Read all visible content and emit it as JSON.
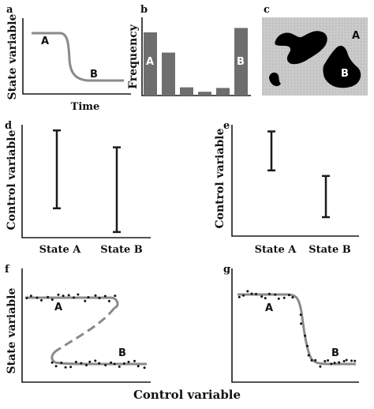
{
  "panels": {
    "a": {
      "letter": "a",
      "ylabel": "State variable",
      "xlabel": "Time",
      "label_a": "A",
      "label_b": "B"
    },
    "b": {
      "letter": "b",
      "ylabel": "Frequency",
      "label_a": "A",
      "label_b": "B",
      "bar_heights": [
        1.0,
        0.68,
        0.13,
        0.06,
        0.12,
        1.07
      ]
    },
    "c": {
      "letter": "c",
      "label_a": "A",
      "label_b": "B"
    },
    "d": {
      "letter": "d",
      "ylabel": "Control variable",
      "categories": [
        "State A",
        "State B"
      ],
      "ranges": [
        [
          0.26,
          0.95
        ],
        [
          0.05,
          0.8
        ]
      ]
    },
    "e": {
      "letter": "e",
      "ylabel": "Control variable",
      "categories": [
        "State A",
        "State B"
      ],
      "ranges": [
        [
          0.59,
          0.94
        ],
        [
          0.17,
          0.54
        ]
      ]
    },
    "f": {
      "letter": "f",
      "ylabel": "State variable",
      "label_a": "A",
      "label_b": "B"
    },
    "g": {
      "letter": "g",
      "label_a": "A",
      "label_b": "B"
    }
  },
  "footer": {
    "xlabel": "Control variable"
  },
  "colors": {
    "curve": "#8a8a8a",
    "bar": "#6e6e6e",
    "ink": "#1a1a1a",
    "blob_bg": "#c8c8c8",
    "blob": "#000000"
  }
}
